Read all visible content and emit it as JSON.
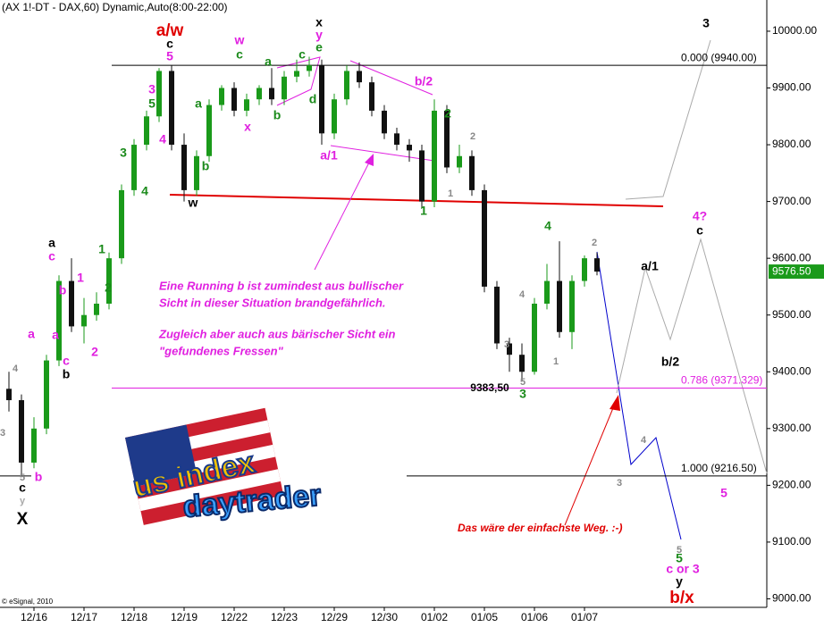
{
  "chart_data": {
    "type": "candlestick",
    "title": "(AX 1!-DT - DAX,60) Dynamic,Auto(8:00-22:00)",
    "copyright": "© eSignal, 2010",
    "categories": [
      null,
      null,
      "12/16",
      null,
      null,
      null,
      "12/17",
      null,
      null,
      null,
      "12/18",
      null,
      null,
      null,
      "12/19",
      null,
      null,
      null,
      "12/22",
      null,
      null,
      null,
      "12/23",
      null,
      null,
      null,
      "12/29",
      null,
      null,
      null,
      "12/30",
      null,
      null,
      null,
      "01/02",
      null,
      null,
      null,
      "01/05",
      null,
      null,
      null,
      "01/06",
      null,
      null,
      null,
      "01/07",
      null
    ],
    "open": [
      9370,
      9350,
      9240,
      9300,
      9420,
      9560,
      9480,
      9500,
      9520,
      9600,
      9720,
      9800,
      9850,
      9930,
      9800,
      9720,
      9780,
      9870,
      9900,
      9860,
      9880,
      9900,
      9880,
      9920,
      9930,
      9940,
      9820,
      9880,
      9930,
      9910,
      9860,
      9820,
      9800,
      9790,
      9700,
      9860,
      9760,
      9780,
      9720,
      9550,
      9450,
      9430,
      9400,
      9520,
      9560,
      9470,
      9560,
      9600
    ],
    "high": [
      9400,
      9360,
      9320,
      9430,
      9570,
      9600,
      9530,
      9540,
      9610,
      9730,
      9810,
      9860,
      9935,
      9940,
      9820,
      9790,
      9880,
      9905,
      9910,
      9890,
      9905,
      9935,
      9930,
      9950,
      9955,
      9950,
      9890,
      9940,
      9945,
      9920,
      9870,
      9830,
      9810,
      9800,
      9880,
      9870,
      9800,
      9790,
      9730,
      9560,
      9460,
      9450,
      9530,
      9590,
      9630,
      9570,
      9605,
      9610
    ],
    "low": [
      9330,
      9216,
      9230,
      9290,
      9410,
      9470,
      9450,
      9490,
      9510,
      9590,
      9710,
      9790,
      9840,
      9790,
      9700,
      9710,
      9770,
      9860,
      9850,
      9850,
      9870,
      9870,
      9870,
      9910,
      9920,
      9800,
      9810,
      9870,
      9900,
      9850,
      9810,
      9790,
      9770,
      9690,
      9690,
      9750,
      9750,
      9710,
      9540,
      9440,
      9400,
      9383.5,
      9395,
      9510,
      9460,
      9440,
      9550,
      9570
    ],
    "close": [
      9350,
      9240,
      9300,
      9420,
      9560,
      9480,
      9500,
      9520,
      9600,
      9720,
      9800,
      9850,
      9930,
      9800,
      9720,
      9780,
      9870,
      9900,
      9860,
      9880,
      9900,
      9880,
      9920,
      9930,
      9940,
      9820,
      9880,
      9930,
      9910,
      9860,
      9820,
      9800,
      9790,
      9700,
      9860,
      9760,
      9780,
      9720,
      9550,
      9450,
      9430,
      9400,
      9520,
      9560,
      9470,
      9560,
      9600,
      9576.5
    ],
    "up_color": "#1a9a1a",
    "down_color": "#111111",
    "ylim": [
      8985,
      10055
    ],
    "yticks": [
      {
        "value": 9000,
        "label": "9000.00"
      },
      {
        "value": 9100,
        "label": "9100.00"
      },
      {
        "value": 9200,
        "label": "9200.00"
      },
      {
        "value": 9300,
        "label": "9300.00"
      },
      {
        "value": 9400,
        "label": "9400.00"
      },
      {
        "value": 9500,
        "label": "9500.00"
      },
      {
        "value": 9600,
        "label": "9600.00"
      },
      {
        "value": 9700,
        "label": "9700.00"
      },
      {
        "value": 9800,
        "label": "9800.00"
      },
      {
        "value": 9900,
        "label": "9900.00"
      },
      {
        "value": 10000,
        "label": "10000.00"
      }
    ],
    "last_price": {
      "value": 9576.5,
      "label": "9576.50"
    },
    "low_marker": {
      "value": 9383.5,
      "label": "9383,50"
    },
    "levels": [
      {
        "value": 9940,
        "label": "0.000 (9940.00)",
        "color": "#000000"
      },
      {
        "value": 9371.329,
        "label": "0.786 (9371.329)",
        "color": "#e020e0"
      },
      {
        "value": 9216.5,
        "label": "1.000 (9216.50)",
        "color": "#000000"
      }
    ],
    "annotations": [
      {
        "text": "a/w",
        "color": "#e00000"
      },
      {
        "text": "c",
        "color": "#000000"
      },
      {
        "text": "5",
        "color": "#e020e0"
      },
      {
        "text": "w",
        "color": "#e020e0"
      },
      {
        "text": "c",
        "color": "#1a8a1a"
      },
      {
        "text": "a",
        "color": "#1a8a1a"
      },
      {
        "text": "c",
        "color": "#1a8a1a"
      },
      {
        "text": "x",
        "color": "#000000"
      },
      {
        "text": "y",
        "color": "#e020e0"
      },
      {
        "text": "e",
        "color": "#1a8a1a"
      },
      {
        "text": "b",
        "color": "#1a8a1a"
      },
      {
        "text": "d",
        "color": "#1a8a1a"
      },
      {
        "text": "x",
        "color": "#e020e0"
      },
      {
        "text": "3",
        "color": "#e020e0"
      },
      {
        "text": "5",
        "color": "#1a8a1a"
      },
      {
        "text": "4",
        "color": "#e020e0"
      },
      {
        "text": "a",
        "color": "#1a8a1a"
      },
      {
        "text": "b",
        "color": "#1a8a1a"
      },
      {
        "text": "3",
        "color": "#1a8a1a"
      },
      {
        "text": "4",
        "color": "#1a8a1a"
      },
      {
        "text": "w",
        "color": "#000000"
      },
      {
        "text": "b/2",
        "color": "#e020e0"
      },
      {
        "text": "a/1",
        "color": "#e020e0"
      },
      {
        "text": "2",
        "color": "#1a8a1a"
      },
      {
        "text": "2",
        "color": "#888888"
      },
      {
        "text": "1",
        "color": "#888888"
      },
      {
        "text": "1",
        "color": "#1a8a1a"
      },
      {
        "text": "4",
        "color": "#1a8a1a"
      },
      {
        "text": "2",
        "color": "#888888"
      },
      {
        "text": "4",
        "color": "#888888"
      },
      {
        "text": "3",
        "color": "#888888"
      },
      {
        "text": "1",
        "color": "#888888"
      },
      {
        "text": "5",
        "color": "#888888"
      },
      {
        "text": "3",
        "color": "#1a8a1a"
      },
      {
        "text": "a",
        "color": "#000000"
      },
      {
        "text": "c",
        "color": "#e020e0"
      },
      {
        "text": "b",
        "color": "#e020e0"
      },
      {
        "text": "1",
        "color": "#e020e0"
      },
      {
        "text": "1",
        "color": "#1a8a1a"
      },
      {
        "text": "2",
        "color": "#1a8a1a"
      },
      {
        "text": "a",
        "color": "#e020e0"
      },
      {
        "text": "2",
        "color": "#e020e0"
      },
      {
        "text": "c",
        "color": "#e020e0"
      },
      {
        "text": "b",
        "color": "#000000"
      },
      {
        "text": "a",
        "color": "#e020e0"
      },
      {
        "text": "4",
        "color": "#888888"
      },
      {
        "text": "3",
        "color": "#888888"
      },
      {
        "text": "b",
        "color": "#e020e0"
      },
      {
        "text": "5",
        "color": "#888888"
      },
      {
        "text": "c",
        "color": "#000000"
      },
      {
        "text": "y",
        "color": "#aaaaaa"
      },
      {
        "text": "X",
        "color": "#000000"
      },
      {
        "text": "3",
        "color": "#000000"
      },
      {
        "text": "4?",
        "color": "#e020e0"
      },
      {
        "text": "c",
        "color": "#000000"
      },
      {
        "text": "a/1",
        "color": "#000000"
      },
      {
        "text": "b/2",
        "color": "#000000"
      },
      {
        "text": "5",
        "color": "#e020e0"
      },
      {
        "text": "4",
        "color": "#888888"
      },
      {
        "text": "3",
        "color": "#888888"
      },
      {
        "text": "5",
        "color": "#888888"
      },
      {
        "text": "5",
        "color": "#1a8a1a"
      },
      {
        "text": "c or 3",
        "color": "#e020e0"
      },
      {
        "text": "y",
        "color": "#000000"
      },
      {
        "text": "b/x",
        "color": "#e00000"
      }
    ],
    "comment_lines": [
      "Eine Running b ist zumindest aus bullischer",
      "Sicht in dieser Situation brandgefährlich.",
      "Zugleich aber auch aus bärischer Sicht ein",
      "\"gefundenes Fressen\""
    ],
    "comment_color": "#e020e0",
    "red_comment": "Das wäre der einfachste Weg. :-)",
    "logo": [
      "us index",
      "daytrader"
    ]
  }
}
